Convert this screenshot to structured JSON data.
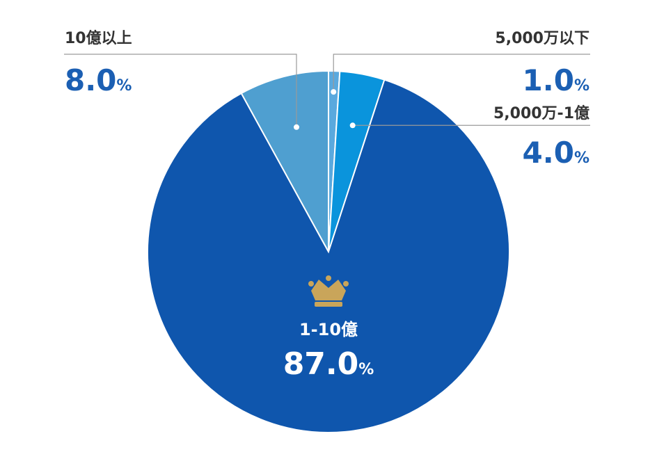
{
  "chart_data": {
    "type": "pie",
    "categories": [
      "5,000万以下",
      "5,000万-1億",
      "1-10億",
      "10億以上"
    ],
    "values": [
      1.0,
      4.0,
      87.0,
      8.0
    ],
    "value_labels": [
      "1.0",
      "4.0",
      "87.0",
      "8.0"
    ],
    "unit": "%",
    "colors": [
      "#5aa9de",
      "#0a94dc",
      "#0f56ad",
      "#4f9fd0"
    ],
    "highlight_category": "1-10億",
    "highlight_icon": "crown-icon",
    "title": "",
    "legend": "none"
  }
}
